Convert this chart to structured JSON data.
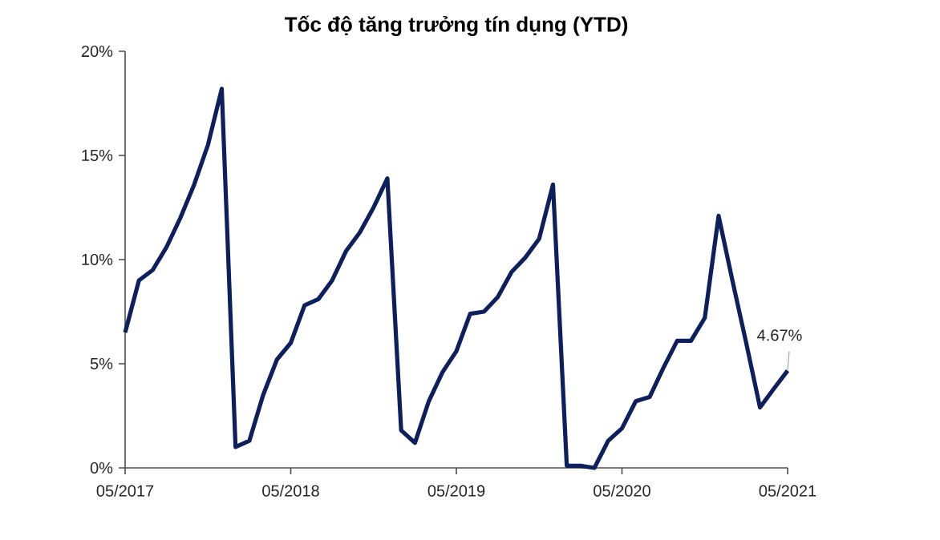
{
  "chart_data": {
    "type": "line",
    "title": "Tốc độ tăng trưởng tín dụng (YTD)",
    "x": [
      "2017-05",
      "2017-06",
      "2017-07",
      "2017-08",
      "2017-09",
      "2017-10",
      "2017-11",
      "2017-12",
      "2018-01",
      "2018-02",
      "2018-03",
      "2018-04",
      "2018-05",
      "2018-06",
      "2018-07",
      "2018-08",
      "2018-09",
      "2018-10",
      "2018-11",
      "2018-12",
      "2019-01",
      "2019-02",
      "2019-03",
      "2019-04",
      "2019-05",
      "2019-06",
      "2019-07",
      "2019-08",
      "2019-09",
      "2019-10",
      "2019-11",
      "2019-12",
      "2020-01",
      "2020-02",
      "2020-03",
      "2020-04",
      "2020-05",
      "2020-06",
      "2020-07",
      "2020-08",
      "2020-09",
      "2020-10",
      "2020-11",
      "2020-12",
      "2021-01",
      "2021-02",
      "2021-03",
      "2021-04",
      "2021-05"
    ],
    "series": [
      {
        "color": "#0d1f5c",
        "values": [
          6.5,
          9.0,
          9.5,
          10.6,
          12.0,
          13.6,
          15.5,
          18.2,
          1.0,
          1.3,
          3.5,
          5.2,
          6.0,
          7.8,
          8.1,
          9.0,
          10.4,
          11.3,
          12.5,
          13.9,
          1.8,
          1.2,
          3.2,
          4.6,
          5.6,
          7.4,
          7.5,
          8.2,
          9.4,
          10.1,
          11.0,
          13.6,
          0.1,
          0.1,
          0.0,
          1.3,
          1.9,
          3.2,
          3.4,
          4.8,
          6.1,
          6.1,
          7.2,
          12.1,
          9.0,
          6.0,
          2.9,
          3.8,
          4.67
        ]
      }
    ],
    "xlim": [
      "2017-05",
      "2021-05"
    ],
    "xticks": [
      {
        "value": "2017-05",
        "label": "05/2017"
      },
      {
        "value": "2018-05",
        "label": "05/2018"
      },
      {
        "value": "2019-05",
        "label": "05/2019"
      },
      {
        "value": "2020-05",
        "label": "05/2020"
      },
      {
        "value": "2021-05",
        "label": "05/2021"
      }
    ],
    "ylim": [
      0,
      20
    ],
    "yticks": [
      {
        "value": 0,
        "label": "0%"
      },
      {
        "value": 5,
        "label": "5%"
      },
      {
        "value": 10,
        "label": "10%"
      },
      {
        "value": 15,
        "label": "15%"
      },
      {
        "value": 20,
        "label": "20%"
      }
    ],
    "annotations": [
      {
        "text": "4.67%",
        "x": "2021-05",
        "y": 4.67
      }
    ],
    "grid": false,
    "marker": "none",
    "line_style": "solid"
  }
}
